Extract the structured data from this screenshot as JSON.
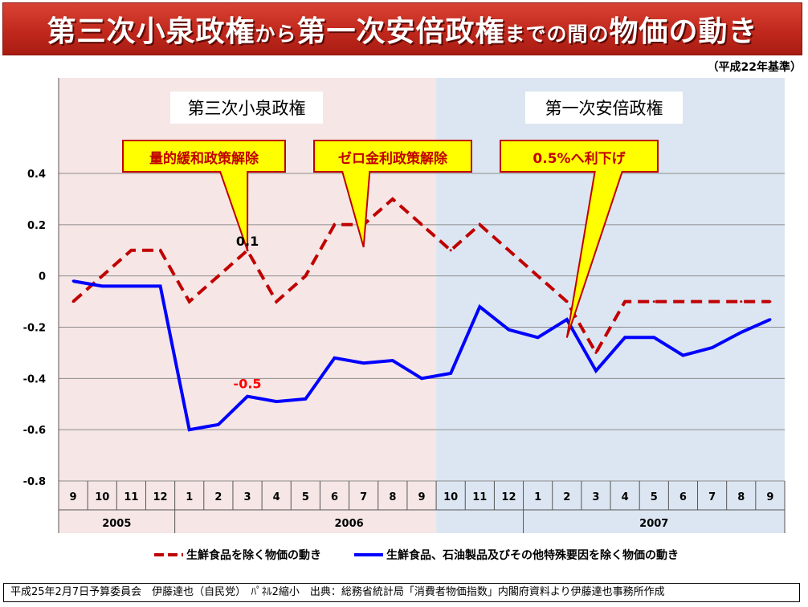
{
  "header": {
    "title_parts": [
      "第三次小泉政権",
      "から",
      "第一次安倍政権",
      "までの間の",
      "物価の動き"
    ],
    "basis_note": "（平成22年基準）"
  },
  "periods": [
    {
      "label": "第三次小泉政権",
      "from_index": 0,
      "to_index": 12,
      "color": "#f6e6e6"
    },
    {
      "label": "第一次安倍政権",
      "from_index": 13,
      "to_index": 24,
      "color": "#dce6f2"
    }
  ],
  "callouts": [
    {
      "text": "量的緩和政策解除",
      "tip_index": 6
    },
    {
      "text": "ゼロ金利政策解除",
      "tip_index": 10
    },
    {
      "text": "0.5%へ利下げ",
      "tip_index": 17
    }
  ],
  "chart_data": {
    "type": "line",
    "categories": [
      "9",
      "10",
      "11",
      "12",
      "1",
      "2",
      "3",
      "4",
      "5",
      "6",
      "7",
      "8",
      "9",
      "10",
      "11",
      "12",
      "1",
      "2",
      "3",
      "4",
      "5",
      "6",
      "7",
      "8",
      "9"
    ],
    "years": [
      {
        "label": "2005",
        "from_index": 0,
        "to_index": 3
      },
      {
        "label": "2006",
        "from_index": 4,
        "to_index": 15
      },
      {
        "label": "2007",
        "from_index": 16,
        "to_index": 24
      }
    ],
    "ylim": [
      -0.8,
      0.4
    ],
    "yticks": [
      0.4,
      0.2,
      0,
      -0.2,
      -0.4,
      -0.6,
      -0.8
    ],
    "ytick_labels": [
      "0.4",
      "0.2",
      "0",
      "-0.2",
      "-0.4",
      "-0.6",
      "-0.8"
    ],
    "grid": true,
    "legend_position": "bottom",
    "series": [
      {
        "name": "生鮮食品を除く物価の動き",
        "color": "#c00000",
        "dash": true,
        "values": [
          -0.1,
          0.0,
          0.1,
          0.1,
          -0.1,
          0.0,
          0.1,
          -0.1,
          0.0,
          0.2,
          0.2,
          0.3,
          0.2,
          0.1,
          0.2,
          0.1,
          0.0,
          -0.1,
          -0.3,
          -0.1,
          -0.1,
          -0.1,
          -0.1,
          -0.1,
          -0.1
        ]
      },
      {
        "name": "生鮮食品、石油製品及びその他特殊要因を除く物価の動き",
        "color": "#0000ff",
        "dash": false,
        "values": [
          -0.02,
          -0.04,
          -0.04,
          -0.04,
          -0.6,
          -0.58,
          -0.47,
          -0.49,
          -0.48,
          -0.32,
          -0.34,
          -0.33,
          -0.4,
          -0.38,
          -0.12,
          -0.21,
          -0.24,
          -0.17,
          -0.37,
          -0.24,
          -0.24,
          -0.31,
          -0.28,
          -0.22,
          -0.17
        ]
      }
    ],
    "annotations": [
      {
        "text": "0.1",
        "index": 6,
        "value": 0.1,
        "color": "#000000"
      },
      {
        "text": "-0.5",
        "index": 6,
        "value": -0.47,
        "color": "#ff0000"
      }
    ]
  },
  "footer": {
    "text": "平成25年2月7日予算委員会　伊藤達也（自民党）　ﾊﾟﾈﾙ2縮小　出典：総務省統計局「消費者物価指数」内閣府資料より伊藤達也事務所作成"
  }
}
